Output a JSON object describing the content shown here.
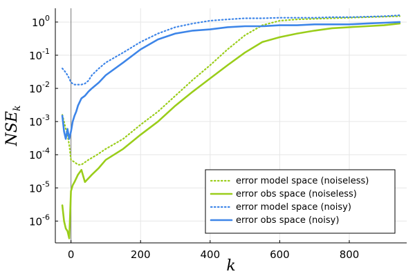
{
  "chart_data": {
    "type": "line",
    "xlabel": "k",
    "ylabel": "NSE_k",
    "yscale": "log",
    "xlim": [
      -45,
      965
    ],
    "ylim": [
      2.2e-07,
      2.6
    ],
    "x_ticks": [
      0,
      200,
      400,
      600,
      800
    ],
    "y_ticks": [
      {
        "value": 1.0,
        "base": "10",
        "exp": "0"
      },
      {
        "value": 0.1,
        "base": "10",
        "exp": "-1"
      },
      {
        "value": 0.01,
        "base": "10",
        "exp": "-2"
      },
      {
        "value": 0.001,
        "base": "10",
        "exp": "-3"
      },
      {
        "value": 0.0001,
        "base": "10",
        "exp": "-4"
      },
      {
        "value": 1e-05,
        "base": "10",
        "exp": "-5"
      },
      {
        "value": 1e-06,
        "base": "10",
        "exp": "-6"
      }
    ],
    "y_tick_text": [
      "10",
      "10",
      "10",
      "10",
      "10",
      "10",
      "10"
    ],
    "grid": true,
    "vline_x": 0,
    "legend_position": "bottom-right",
    "series": [
      {
        "name": "error model space (noiseless)",
        "color": "#9ACD1A",
        "style": "dotted",
        "x": [
          -25,
          -20,
          -15,
          -10,
          -5,
          0,
          10,
          20,
          30,
          50,
          75,
          100,
          150,
          200,
          250,
          300,
          350,
          400,
          450,
          500,
          550,
          600,
          650,
          700,
          750,
          800,
          850,
          900,
          945
        ],
        "y": [
          0.0016,
          0.001,
          0.0006,
          0.0004,
          0.0002,
          7e-05,
          6e-05,
          5e-05,
          5e-05,
          7e-05,
          0.0001,
          0.00015,
          0.0003,
          0.0008,
          0.002,
          0.006,
          0.018,
          0.05,
          0.15,
          0.4,
          0.8,
          1.1,
          1.2,
          1.25,
          1.3,
          1.35,
          1.4,
          1.45,
          1.5
        ]
      },
      {
        "name": "error obs space (noiseless)",
        "color": "#9ACD1A",
        "style": "solid",
        "x": [
          -25,
          -20,
          -15,
          -10,
          -5,
          0,
          5,
          10,
          20,
          30,
          40,
          60,
          80,
          100,
          150,
          200,
          250,
          300,
          350,
          400,
          450,
          500,
          550,
          600,
          650,
          700,
          750,
          800,
          850,
          900,
          945
        ],
        "y": [
          3e-06,
          1e-06,
          6e-07,
          5e-07,
          3e-07,
          8e-06,
          1.2e-05,
          1.5e-05,
          2.5e-05,
          3.5e-05,
          1.5e-05,
          2.5e-05,
          4e-05,
          7e-05,
          0.00015,
          0.0004,
          0.001,
          0.003,
          0.008,
          0.02,
          0.05,
          0.12,
          0.25,
          0.35,
          0.45,
          0.55,
          0.65,
          0.7,
          0.75,
          0.8,
          0.9
        ]
      },
      {
        "name": "error model space (noisy)",
        "color": "#3D85E8",
        "style": "dotted",
        "x": [
          -25,
          -20,
          -15,
          -10,
          -5,
          0,
          10,
          20,
          30,
          40,
          50,
          60,
          80,
          100,
          150,
          200,
          250,
          300,
          350,
          400,
          450,
          500,
          550,
          600,
          650,
          700,
          750,
          800,
          850,
          900,
          945
        ],
        "y": [
          0.04,
          0.035,
          0.03,
          0.025,
          0.02,
          0.015,
          0.013,
          0.013,
          0.013,
          0.014,
          0.017,
          0.025,
          0.04,
          0.06,
          0.12,
          0.25,
          0.45,
          0.7,
          0.9,
          1.1,
          1.2,
          1.3,
          1.3,
          1.35,
          1.35,
          1.35,
          1.4,
          1.4,
          1.45,
          1.5,
          1.6
        ]
      },
      {
        "name": "error obs space (noisy)",
        "color": "#3D85E8",
        "style": "solid",
        "x": [
          -25,
          -20,
          -15,
          -10,
          -5,
          0,
          5,
          10,
          15,
          20,
          30,
          40,
          50,
          60,
          80,
          100,
          150,
          200,
          250,
          300,
          350,
          400,
          450,
          500,
          550,
          600,
          650,
          700,
          750,
          800,
          850,
          900,
          945
        ],
        "y": [
          0.0015,
          0.0005,
          0.0003,
          0.0006,
          0.0003,
          0.0005,
          0.001,
          0.0015,
          0.002,
          0.003,
          0.005,
          0.006,
          0.008,
          0.01,
          0.015,
          0.025,
          0.06,
          0.15,
          0.3,
          0.45,
          0.55,
          0.6,
          0.7,
          0.75,
          0.75,
          0.8,
          0.8,
          0.85,
          0.85,
          0.85,
          0.9,
          0.95,
          1.0
        ]
      }
    ]
  }
}
